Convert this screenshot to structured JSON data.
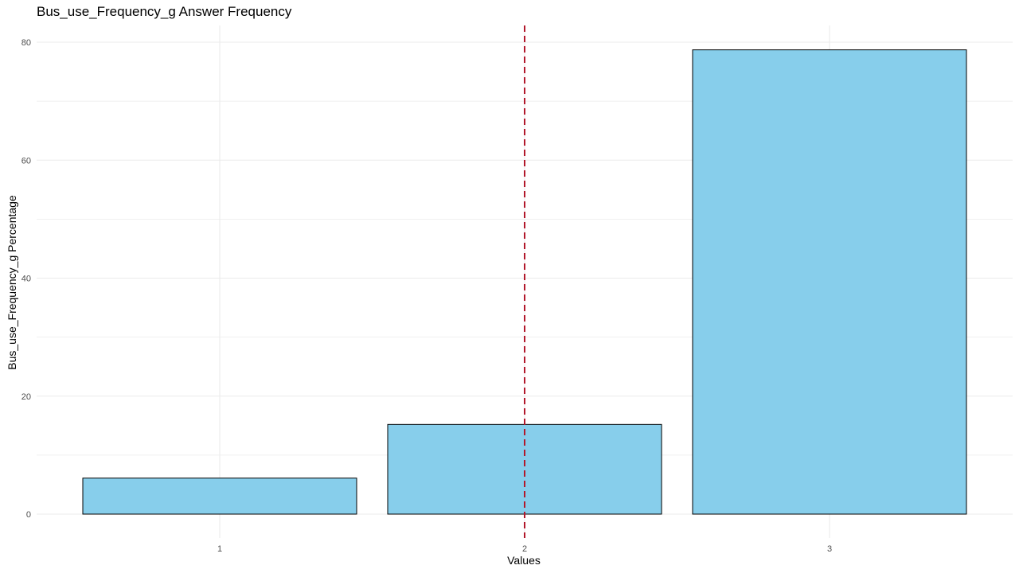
{
  "chart_data": {
    "type": "bar",
    "title": "Bus_use_Frequency_g Answer Frequency",
    "xlabel": "Values",
    "ylabel": "Bus_use_Frequency_g Percentage",
    "categories": [
      "1",
      "2",
      "3"
    ],
    "values": [
      6.1,
      15.2,
      78.7
    ],
    "ylim": [
      0,
      82.5
    ],
    "yticks": [
      0,
      20,
      40,
      60,
      80
    ],
    "grid": true,
    "reference_line": {
      "x": 2,
      "style": "dashed",
      "color": "#B2182B"
    },
    "colors": {
      "bar_fill": "#87CEEB",
      "bar_stroke": "#000000",
      "grid": "#EBEBEB"
    }
  }
}
